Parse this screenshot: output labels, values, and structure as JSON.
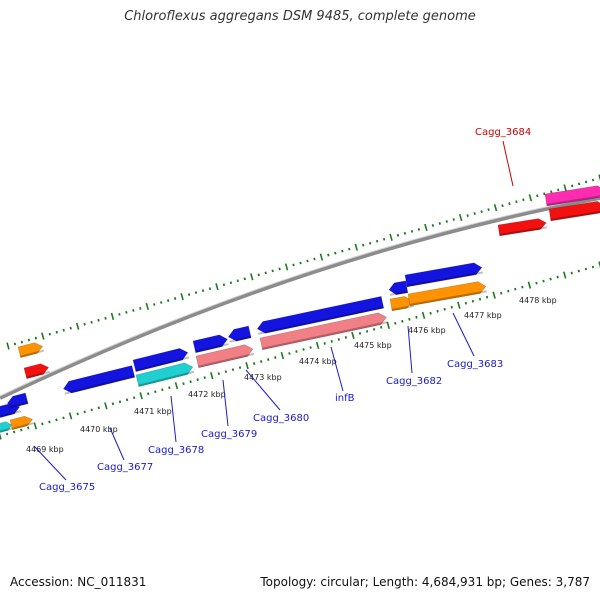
{
  "title": "Chloroflexus aggregans DSM 9485, complete genome",
  "footer": {
    "accession": "Accession: NC_011831",
    "summary": "Topology: circular; Length: 4,684,931 bp; Genes: 3,787"
  },
  "colors": {
    "backbone": "#8c8c8c",
    "tick": "#1f7a1f",
    "label_blue": "#1a1acc",
    "label_red": "#cc0000"
  },
  "ticks": [
    {
      "label": "4469 kbp"
    },
    {
      "label": "4470 kbp"
    },
    {
      "label": "4471 kbp"
    },
    {
      "label": "4472 kbp"
    },
    {
      "label": "4473 kbp"
    },
    {
      "label": "4474 kbp"
    },
    {
      "label": "4475 kbp"
    },
    {
      "label": "4476 kbp"
    },
    {
      "label": "4477 kbp"
    },
    {
      "label": "4478 kbp"
    }
  ],
  "gene_labels": [
    {
      "name": "Cagg_3675",
      "color": "#1a1acc"
    },
    {
      "name": "Cagg_3677",
      "color": "#1a1acc"
    },
    {
      "name": "Cagg_3678",
      "color": "#1a1acc"
    },
    {
      "name": "Cagg_3679",
      "color": "#1a1acc"
    },
    {
      "name": "Cagg_3680",
      "color": "#1a1acc"
    },
    {
      "name": "infB",
      "color": "#1a1acc"
    },
    {
      "name": "Cagg_3682",
      "color": "#1a1acc"
    },
    {
      "name": "Cagg_3683",
      "color": "#1a1acc"
    },
    {
      "name": "Cagg_3684",
      "color": "#cc0000"
    }
  ]
}
